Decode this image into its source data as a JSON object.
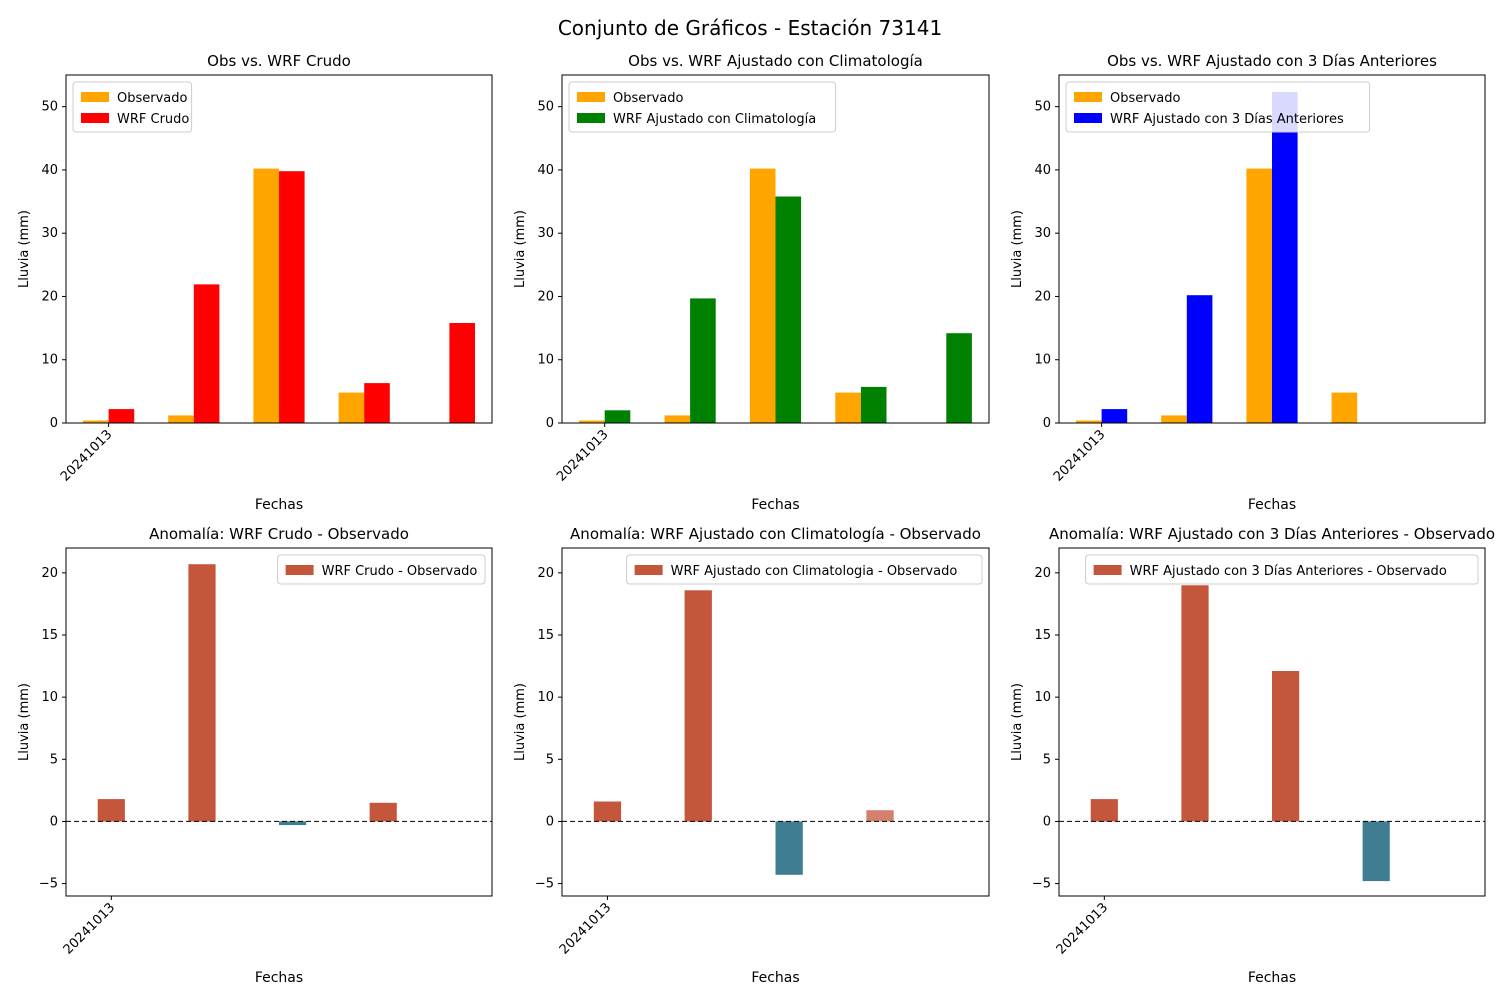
{
  "figure": {
    "title": "Conjunto de Gráficos - Estación 73141"
  },
  "chart_data": [
    {
      "type": "bar",
      "title": "Obs vs. WRF Crudo",
      "xlabel": "Fechas",
      "ylabel": "Lluvia (mm)",
      "x_tick_labels": [
        "20241013"
      ],
      "ylim": [
        0,
        55
      ],
      "y_ticks": [
        0,
        10,
        20,
        30,
        40,
        50
      ],
      "legend_position": "top-left",
      "series": [
        {
          "name": "Observado",
          "color": "#FFA500",
          "values": [
            0.4,
            1.2,
            40.2,
            4.8,
            0
          ]
        },
        {
          "name": "WRF Crudo",
          "color": "#FF0000",
          "values": [
            2.2,
            21.9,
            39.8,
            6.3,
            15.8
          ]
        }
      ]
    },
    {
      "type": "bar",
      "title": "Obs vs. WRF Ajustado con Climatología",
      "xlabel": "Fechas",
      "ylabel": "Lluvia (mm)",
      "x_tick_labels": [
        "20241013"
      ],
      "ylim": [
        0,
        55
      ],
      "y_ticks": [
        0,
        10,
        20,
        30,
        40,
        50
      ],
      "legend_position": "top-left",
      "series": [
        {
          "name": "Observado",
          "color": "#FFA500",
          "values": [
            0.4,
            1.2,
            40.2,
            4.8,
            0
          ]
        },
        {
          "name": "WRF Ajustado con Climatología",
          "color": "#008000",
          "values": [
            2.0,
            19.7,
            35.8,
            5.7,
            14.2
          ]
        }
      ]
    },
    {
      "type": "bar",
      "title": "Obs vs. WRF Ajustado con 3 Días Anteriores",
      "xlabel": "Fechas",
      "ylabel": "Lluvia (mm)",
      "x_tick_labels": [
        "20241013"
      ],
      "ylim": [
        0,
        55
      ],
      "y_ticks": [
        0,
        10,
        20,
        30,
        40,
        50
      ],
      "legend_position": "top-left",
      "series": [
        {
          "name": "Observado",
          "color": "#FFA500",
          "values": [
            0.4,
            1.2,
            40.2,
            4.8,
            0
          ]
        },
        {
          "name": "WRF Ajustado con 3 Días Anteriores",
          "color": "#0000FF",
          "values": [
            2.2,
            20.2,
            52.3,
            0,
            0
          ]
        }
      ]
    },
    {
      "type": "bar",
      "title": "Anomalía: WRF Crudo - Observado",
      "xlabel": "Fechas",
      "ylabel": "Lluvia (mm)",
      "x_tick_labels": [
        "20241013"
      ],
      "ylim": [
        -6,
        22
      ],
      "y_ticks": [
        -5,
        0,
        5,
        10,
        15,
        20
      ],
      "legend_position": "top-right",
      "legend_label": "WRF Crudo - Observado",
      "positive_color": "#C4563C",
      "negative_color": "#3F7D92",
      "values": [
        1.8,
        20.7,
        -0.3,
        1.5
      ],
      "reference_line": 0
    },
    {
      "type": "bar",
      "title": "Anomalía: WRF Ajustado con Climatología - Observado",
      "xlabel": "Fechas",
      "ylabel": "Lluvia (mm)",
      "x_tick_labels": [
        "20241013"
      ],
      "ylim": [
        -6,
        22
      ],
      "y_ticks": [
        -5,
        0,
        5,
        10,
        15,
        20
      ],
      "legend_position": "top-right",
      "legend_label": "WRF Ajustado con Climatologia - Observado",
      "positive_color": "#C4563C",
      "negative_color": "#3F7D92",
      "values": [
        1.6,
        18.6,
        -4.3,
        0.9
      ],
      "reference_line": 0
    },
    {
      "type": "bar",
      "title": "Anomalía: WRF Ajustado con 3 Días Anteriores - Observado",
      "xlabel": "Fechas",
      "ylabel": "Lluvia (mm)",
      "x_tick_labels": [
        "20241013"
      ],
      "ylim": [
        -6,
        22
      ],
      "y_ticks": [
        -5,
        0,
        5,
        10,
        15,
        20
      ],
      "legend_position": "top-right",
      "legend_label": "WRF Ajustado con 3 Días Anteriores - Observado",
      "positive_color": "#C4563C",
      "negative_color": "#3F7D92",
      "values": [
        1.8,
        19.0,
        12.1,
        -4.8
      ],
      "reference_line": 0
    }
  ]
}
